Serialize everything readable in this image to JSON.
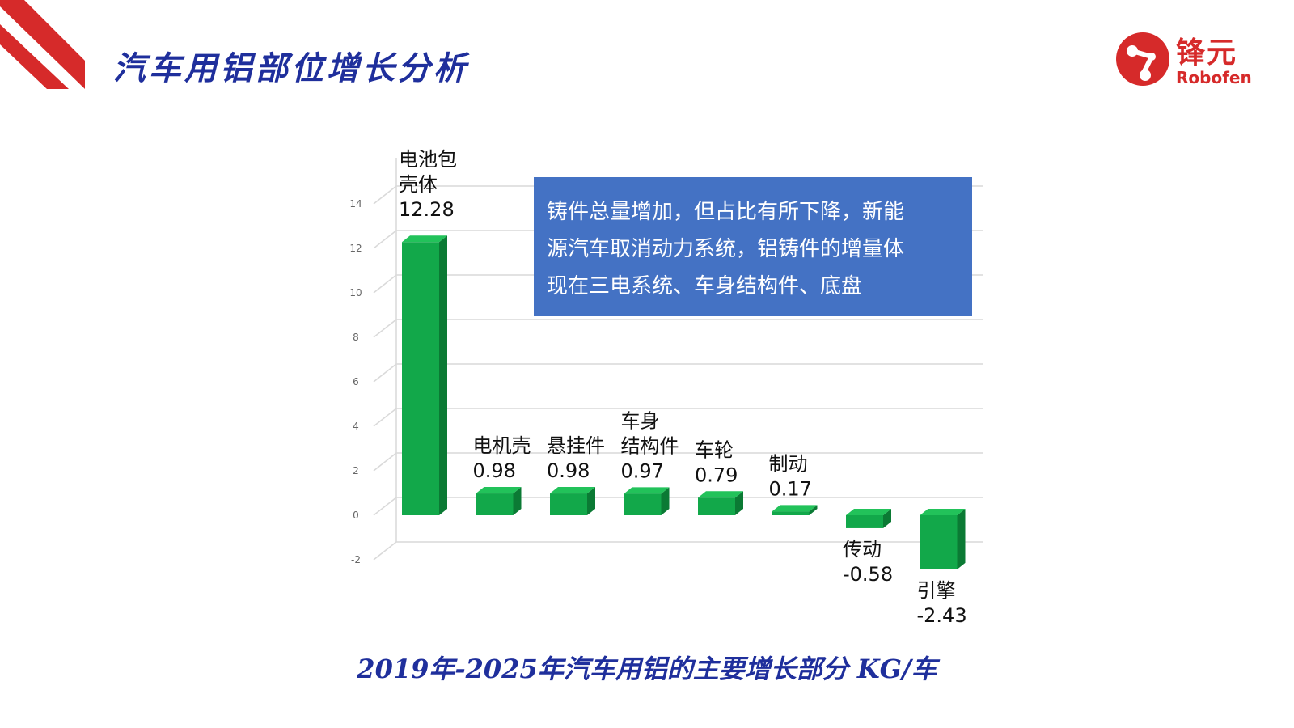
{
  "slide": {
    "title": "汽车用铝部位增长分析",
    "caption": "2019年-2025年汽车用铝的主要增长部分   KG/车",
    "note_lines": [
      "铸件总量增加，但占比有所下降，新能",
      "源汽车取消动力系统，铝铸件的增量体",
      "现在三电系统、车身结构件、底盘"
    ]
  },
  "logo": {
    "cn": "锋元",
    "en": "Robofen"
  },
  "colors": {
    "title": "#1f2f9c",
    "accent_red": "#d62a2a",
    "bar": "#12a84a",
    "bar_top": "#22c25a",
    "bar_side": "#0b7a34",
    "note_bg": "#4472c4"
  },
  "chart_data": {
    "type": "bar",
    "categories": [
      [
        "电池包",
        "壳体"
      ],
      [
        "电机壳"
      ],
      [
        "悬挂件"
      ],
      [
        "车身",
        "结构件"
      ],
      [
        "车轮"
      ],
      [
        "制动"
      ],
      [
        "传动"
      ],
      [
        "引擎"
      ]
    ],
    "values": [
      12.28,
      0.98,
      0.98,
      0.97,
      0.79,
      0.17,
      -0.58,
      -2.43
    ],
    "value_labels": [
      "12.28",
      "0.98",
      "0.98",
      "0.97",
      "0.79",
      "0.17",
      "-0.58",
      "-2.43"
    ],
    "yticks": [
      14,
      12,
      10,
      8,
      6,
      4,
      2,
      0,
      -2
    ],
    "ylim": [
      -2,
      14
    ],
    "grid": true
  }
}
